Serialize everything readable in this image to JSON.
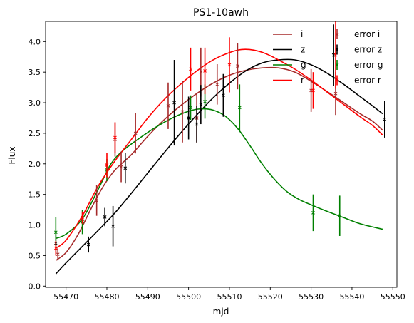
{
  "chart_data": {
    "type": "line",
    "title": "PS1-10awh",
    "xlabel": "mjd",
    "ylabel": "Flux",
    "xlim": [
      55465,
      55551
    ],
    "ylim": [
      -0.02,
      4.33
    ],
    "xticks": [
      55470,
      55480,
      55490,
      55500,
      55510,
      55520,
      55530,
      55540,
      55550
    ],
    "yticks": [
      0.0,
      0.5,
      1.0,
      1.5,
      2.0,
      2.5,
      3.0,
      3.5,
      4.0
    ],
    "grid": false,
    "legend": "top-right",
    "series": [
      {
        "name": "i",
        "color": "#a52a2a",
        "kind": "line",
        "points": [
          [
            55467.5,
            0.42
          ],
          [
            55470,
            0.55
          ],
          [
            55473,
            0.85
          ],
          [
            55476,
            1.25
          ],
          [
            55479,
            1.62
          ],
          [
            55482,
            1.9
          ],
          [
            55486,
            2.15
          ],
          [
            55490,
            2.45
          ],
          [
            55494,
            2.72
          ],
          [
            55498,
            2.95
          ],
          [
            55502,
            3.15
          ],
          [
            55506,
            3.32
          ],
          [
            55510,
            3.45
          ],
          [
            55514,
            3.53
          ],
          [
            55518,
            3.57
          ],
          [
            55522,
            3.57
          ],
          [
            55526,
            3.5
          ],
          [
            55530,
            3.35
          ],
          [
            55534,
            3.18
          ],
          [
            55538,
            3.0
          ],
          [
            55542,
            2.82
          ],
          [
            55545,
            2.7
          ],
          [
            55547.5,
            2.55
          ]
        ]
      },
      {
        "name": "z",
        "color": "#000000",
        "kind": "line",
        "points": [
          [
            55467.5,
            0.2
          ],
          [
            55470,
            0.38
          ],
          [
            55474,
            0.65
          ],
          [
            55478,
            0.92
          ],
          [
            55482,
            1.2
          ],
          [
            55486,
            1.52
          ],
          [
            55490,
            1.85
          ],
          [
            55494,
            2.18
          ],
          [
            55498,
            2.5
          ],
          [
            55502,
            2.8
          ],
          [
            55506,
            3.08
          ],
          [
            55510,
            3.32
          ],
          [
            55514,
            3.52
          ],
          [
            55518,
            3.65
          ],
          [
            55522,
            3.7
          ],
          [
            55526,
            3.7
          ],
          [
            55530,
            3.62
          ],
          [
            55534,
            3.48
          ],
          [
            55538,
            3.3
          ],
          [
            55542,
            3.1
          ],
          [
            55545,
            2.95
          ],
          [
            55547.5,
            2.82
          ]
        ]
      },
      {
        "name": "g",
        "color": "#008000",
        "kind": "line",
        "points": [
          [
            55467.5,
            0.78
          ],
          [
            55470,
            0.85
          ],
          [
            55474,
            1.1
          ],
          [
            55478,
            1.6
          ],
          [
            55481,
            2.0
          ],
          [
            55484,
            2.22
          ],
          [
            55488,
            2.42
          ],
          [
            55492,
            2.6
          ],
          [
            55496,
            2.75
          ],
          [
            55500,
            2.86
          ],
          [
            55503,
            2.9
          ],
          [
            55506,
            2.88
          ],
          [
            55509,
            2.78
          ],
          [
            55512,
            2.58
          ],
          [
            55515,
            2.3
          ],
          [
            55518,
            2.0
          ],
          [
            55521,
            1.75
          ],
          [
            55524,
            1.55
          ],
          [
            55527,
            1.42
          ],
          [
            55530,
            1.33
          ],
          [
            55534,
            1.22
          ],
          [
            55538,
            1.12
          ],
          [
            55542,
            1.02
          ],
          [
            55547.5,
            0.93
          ]
        ]
      },
      {
        "name": "r",
        "color": "#ff0000",
        "kind": "line",
        "points": [
          [
            55467.5,
            0.62
          ],
          [
            55470,
            0.75
          ],
          [
            55474,
            1.15
          ],
          [
            55478,
            1.65
          ],
          [
            55482,
            2.05
          ],
          [
            55486,
            2.4
          ],
          [
            55490,
            2.75
          ],
          [
            55494,
            3.05
          ],
          [
            55498,
            3.3
          ],
          [
            55502,
            3.52
          ],
          [
            55506,
            3.7
          ],
          [
            55510,
            3.82
          ],
          [
            55513,
            3.87
          ],
          [
            55516,
            3.86
          ],
          [
            55519,
            3.8
          ],
          [
            55522,
            3.7
          ],
          [
            55526,
            3.55
          ],
          [
            55530,
            3.37
          ],
          [
            55534,
            3.17
          ],
          [
            55538,
            2.97
          ],
          [
            55542,
            2.77
          ],
          [
            55545,
            2.63
          ],
          [
            55547.5,
            2.47
          ]
        ]
      },
      {
        "name": "error i",
        "color": "#a52a2a",
        "kind": "errorbar",
        "points": [
          [
            55468,
            0.52,
            0.1
          ],
          [
            55477.5,
            1.4,
            0.25
          ],
          [
            55482,
            2.4,
            0.28
          ],
          [
            55483.5,
            1.95,
            0.25
          ],
          [
            55487,
            2.5,
            0.33
          ],
          [
            55495,
            2.95,
            0.38
          ],
          [
            55498.5,
            2.85,
            0.5
          ],
          [
            55502,
            2.75,
            0.4
          ],
          [
            55503,
            3.5,
            0.4
          ],
          [
            55507,
            3.3,
            0.33
          ],
          [
            55512,
            3.6,
            0.38
          ],
          [
            55530,
            3.2,
            0.35
          ],
          [
            55536,
            3.15,
            0.35
          ]
        ]
      },
      {
        "name": "error z",
        "color": "#000000",
        "kind": "errorbar",
        "points": [
          [
            55467.5,
            0.7,
            0.15
          ],
          [
            55475.5,
            0.68,
            0.13
          ],
          [
            55479.5,
            1.13,
            0.15
          ],
          [
            55481.5,
            0.98,
            0.33
          ],
          [
            55484.5,
            1.93,
            0.25
          ],
          [
            55496.5,
            3.0,
            0.7
          ],
          [
            55500,
            2.75,
            0.35
          ],
          [
            55502,
            2.65,
            0.3
          ],
          [
            55503,
            2.97,
            0.32
          ],
          [
            55508.5,
            3.12,
            0.35
          ],
          [
            55535.5,
            3.78,
            0.5
          ],
          [
            55548,
            2.73,
            0.3
          ]
        ]
      },
      {
        "name": "error g",
        "color": "#008000",
        "kind": "errorbar",
        "points": [
          [
            55467.5,
            0.88,
            0.25
          ],
          [
            55474,
            1.05,
            0.2
          ],
          [
            55480,
            1.9,
            0.18
          ],
          [
            55500.5,
            2.92,
            0.2
          ],
          [
            55504,
            3.02,
            0.28
          ],
          [
            55512.5,
            2.92,
            0.38
          ],
          [
            55530.5,
            1.2,
            0.3
          ],
          [
            55537,
            1.15,
            0.33
          ]
        ]
      },
      {
        "name": "error r",
        "color": "#ff0000",
        "kind": "errorbar",
        "points": [
          [
            55467.5,
            0.62,
            0.12
          ],
          [
            55474,
            1.12,
            0.1
          ],
          [
            55480,
            1.98,
            0.2
          ],
          [
            55482,
            2.43,
            0.25
          ],
          [
            55500.5,
            3.55,
            0.35
          ],
          [
            55504,
            3.52,
            0.38
          ],
          [
            55510,
            3.62,
            0.45
          ],
          [
            55530.5,
            3.2,
            0.3
          ],
          [
            55536,
            3.78,
            0.55
          ]
        ]
      }
    ]
  }
}
